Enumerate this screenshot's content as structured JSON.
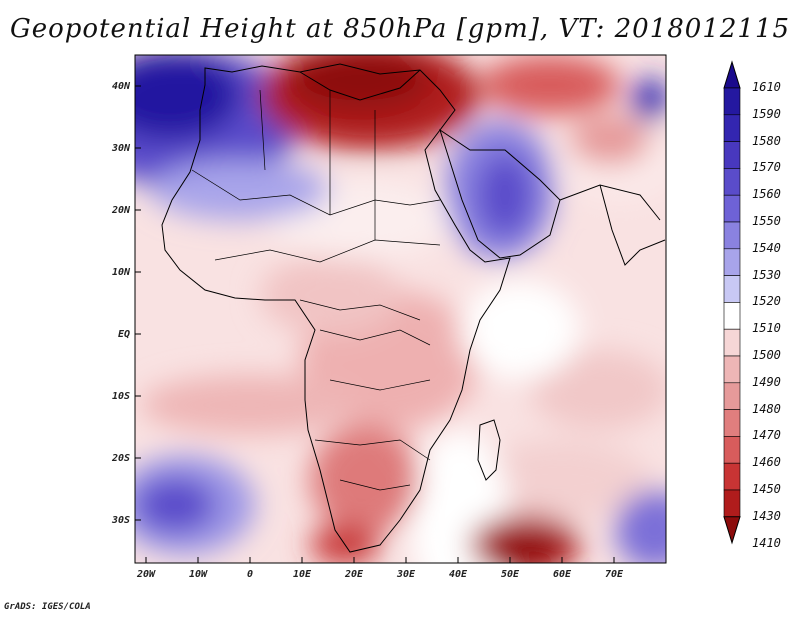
{
  "title": "Geopotential Height at 850hPa [gpm], VT: 2018012115",
  "lat_labels": [
    "40N",
    "30N",
    "20N",
    "10N",
    "EQ",
    "10S",
    "20S",
    "30S"
  ],
  "lon_labels": [
    "20W",
    "10W",
    "0",
    "10E",
    "20E",
    "30E",
    "40E",
    "50E",
    "60E",
    "70E"
  ],
  "colorbar": {
    "levels": [
      "1610",
      "1590",
      "1580",
      "1570",
      "1560",
      "1550",
      "1540",
      "1530",
      "1520",
      "1510",
      "1500",
      "1490",
      "1480",
      "1470",
      "1460",
      "1450",
      "1430",
      "1410"
    ],
    "colors": [
      "#1a0a8c",
      "#2418a0",
      "#3326b0",
      "#4838be",
      "#5a4cca",
      "#6e62d6",
      "#8a82e0",
      "#a8a4ea",
      "#c8c8f4",
      "#ffffff",
      "#f6d6d6",
      "#eeb6b6",
      "#e69a9a",
      "#e07e7e",
      "#d85c5c",
      "#c83434",
      "#b01c1c",
      "#8c0c0c"
    ]
  },
  "credit": "GrADS: IGES/COLA"
}
